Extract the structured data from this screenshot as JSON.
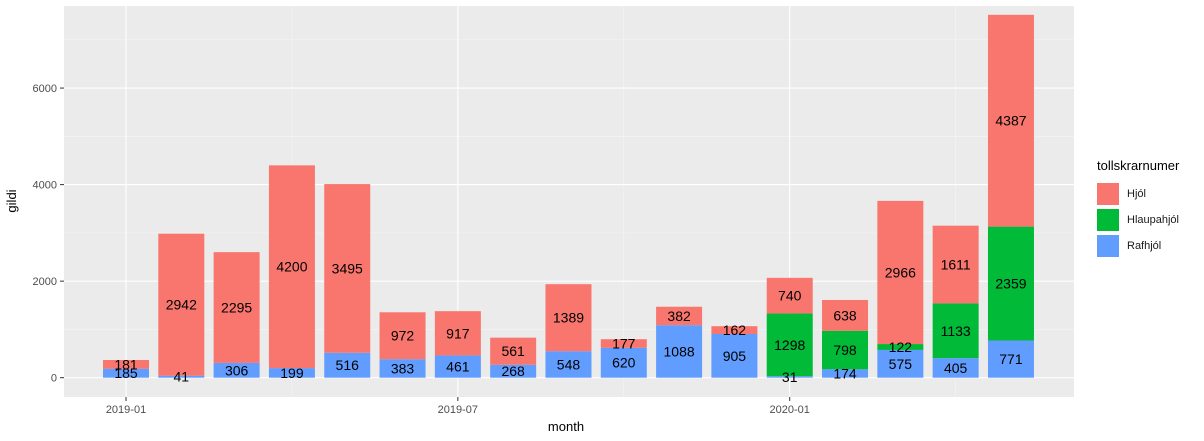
{
  "chart_data": {
    "type": "bar",
    "stacked": true,
    "xlabel": "month",
    "ylabel": "gildi",
    "ylim": [
      -400,
      7700
    ],
    "yticks": [
      0,
      2000,
      4000,
      6000
    ],
    "xticks": [
      "2019-01",
      "2019-07",
      "2020-01"
    ],
    "grid": true,
    "legend_title": "tollskrarnumer",
    "legend_position": "right",
    "categories": [
      "2019-01",
      "2019-02",
      "2019-03",
      "2019-04",
      "2019-05",
      "2019-06",
      "2019-07",
      "2019-08",
      "2019-09",
      "2019-10",
      "2019-11",
      "2019-12",
      "2020-01",
      "2020-02",
      "2020-03",
      "2020-04",
      "2020-05"
    ],
    "series": [
      {
        "name": "Rafhjól",
        "color": "#619CFF",
        "values": [
          185,
          41,
          306,
          199,
          516,
          383,
          461,
          268,
          548,
          620,
          1088,
          905,
          31,
          174,
          575,
          405,
          771
        ]
      },
      {
        "name": "Hlaupahjól",
        "color": "#00BA38",
        "values": [
          0,
          0,
          0,
          0,
          0,
          0,
          0,
          0,
          0,
          0,
          0,
          0,
          1298,
          798,
          122,
          1133,
          2359
        ]
      },
      {
        "name": "Hjól",
        "color": "#F8766D",
        "values": [
          181,
          2942,
          2295,
          4200,
          3495,
          972,
          917,
          561,
          1389,
          177,
          382,
          162,
          740,
          638,
          2966,
          1611,
          4387
        ]
      }
    ]
  }
}
